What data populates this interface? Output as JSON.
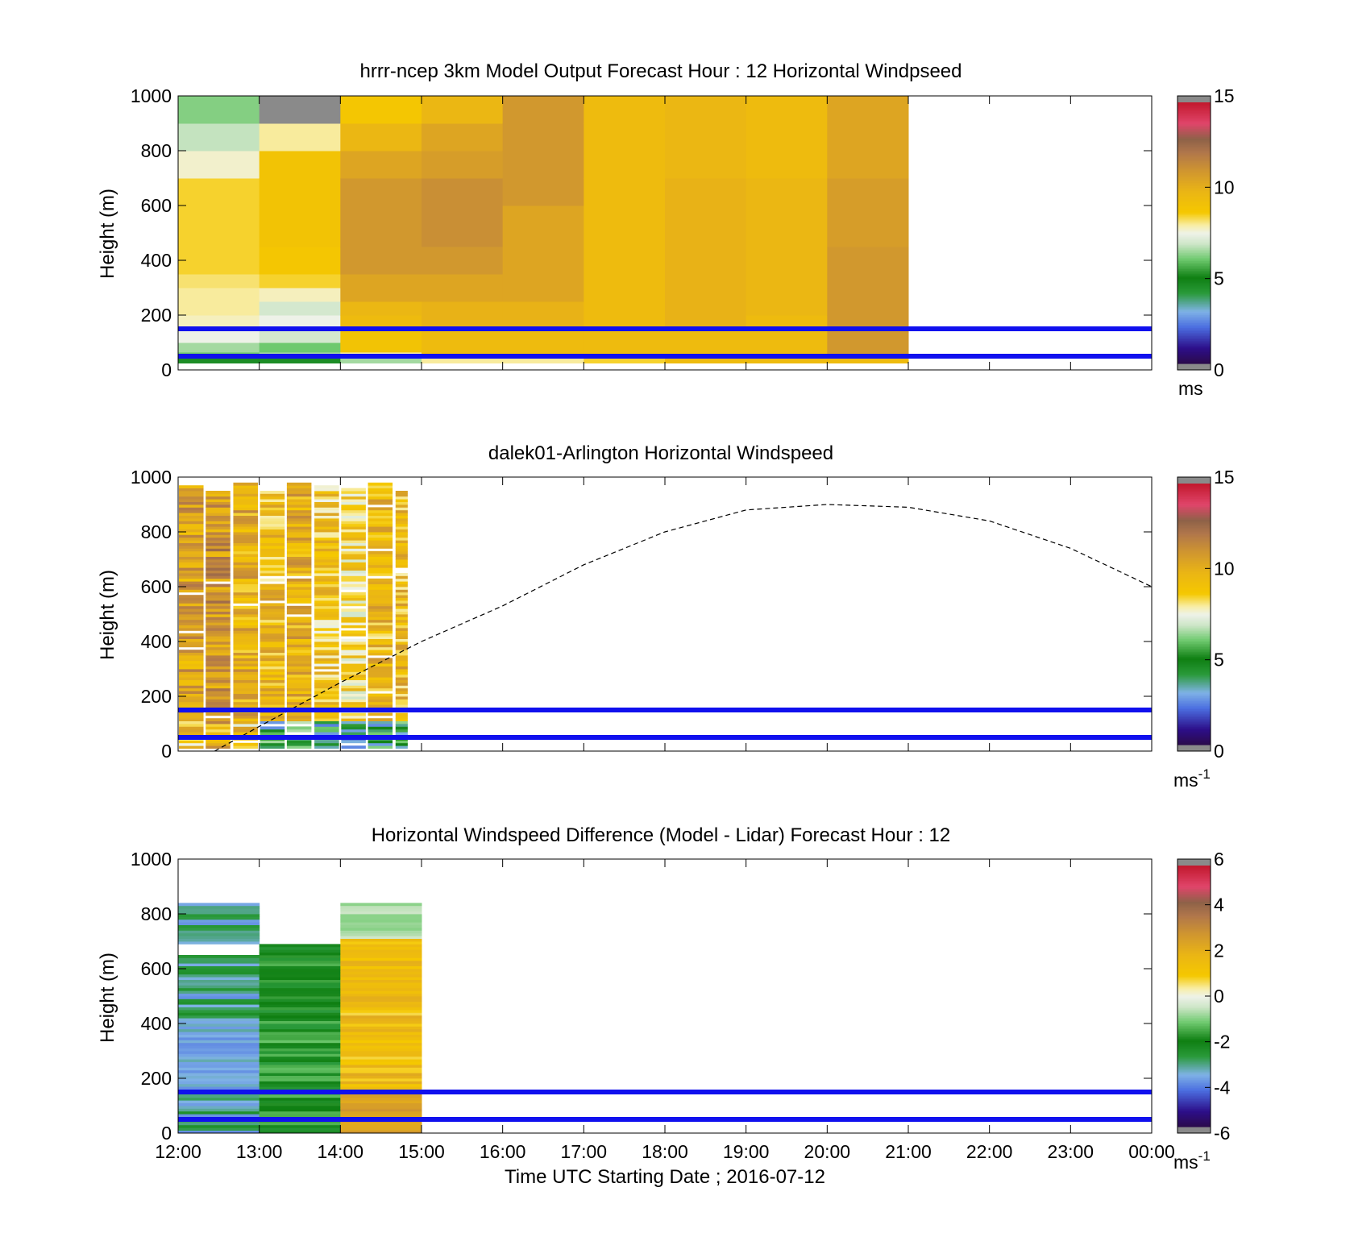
{
  "chart_data": [
    {
      "type": "heatmap",
      "title": "hrrr-ncep 3km Model Output   Forecast Hour : 12 Horizontal Windpseed",
      "ylabel": "Height (m)",
      "xlabel": "",
      "ylim": [
        0,
        1000
      ],
      "yticks": [
        "0",
        "200",
        "400",
        "600",
        "800",
        "1000"
      ],
      "xlim_hours": [
        12,
        24
      ],
      "colorbar": {
        "ticks": [
          "0",
          "5",
          "10",
          "15"
        ],
        "range": [
          0,
          15
        ],
        "unit": "ms"
      },
      "reference_lines_m": [
        150,
        50
      ],
      "reference_line_color": "#1010ee",
      "data_extent_hours": [
        12,
        21
      ],
      "columns_hours": [
        12,
        13,
        14,
        15,
        16,
        17,
        18,
        19,
        20
      ],
      "rows": [
        {
          "y0": 25,
          "y1": 45,
          "v": [
            4.5,
            4.5,
            6.5,
            8.0,
            8.0,
            8.5,
            9.5,
            9.5,
            9.5
          ]
        },
        {
          "y0": 45,
          "y1": 65,
          "v": [
            6.0,
            6.5,
            8.0,
            9.5,
            9.5,
            9.5,
            9.5,
            9.5,
            11.0
          ]
        },
        {
          "y0": 65,
          "y1": 100,
          "v": [
            6.5,
            6.0,
            9.0,
            9.5,
            9.5,
            9.5,
            9.5,
            9.5,
            11.0
          ]
        },
        {
          "y0": 100,
          "y1": 150,
          "v": [
            7.5,
            7.0,
            9.0,
            9.5,
            9.5,
            9.5,
            9.5,
            9.5,
            11.0
          ]
        },
        {
          "y0": 150,
          "y1": 200,
          "v": [
            7.8,
            7.5,
            9.5,
            10.0,
            10.0,
            9.5,
            10.0,
            9.5,
            11.0
          ]
        },
        {
          "y0": 200,
          "y1": 250,
          "v": [
            8.0,
            7.0,
            9.8,
            10.0,
            10.0,
            9.5,
            10.0,
            9.8,
            11.0
          ]
        },
        {
          "y0": 250,
          "y1": 300,
          "v": [
            8.0,
            7.8,
            10.5,
            10.5,
            10.5,
            9.5,
            10.0,
            9.8,
            11.0
          ]
        },
        {
          "y0": 300,
          "y1": 350,
          "v": [
            8.2,
            8.5,
            10.5,
            10.5,
            10.5,
            9.5,
            10.0,
            9.8,
            11.0
          ]
        },
        {
          "y0": 350,
          "y1": 450,
          "v": [
            8.5,
            8.8,
            11.0,
            11.0,
            10.5,
            9.5,
            10.0,
            9.8,
            11.0
          ]
        },
        {
          "y0": 450,
          "y1": 600,
          "v": [
            8.5,
            9.0,
            11.0,
            11.3,
            10.5,
            9.5,
            10.0,
            9.8,
            10.8
          ]
        },
        {
          "y0": 600,
          "y1": 700,
          "v": [
            8.5,
            9.0,
            11.0,
            11.3,
            11.0,
            9.5,
            10.0,
            9.8,
            10.8
          ]
        },
        {
          "y0": 700,
          "y1": 800,
          "v": [
            7.7,
            9.0,
            10.5,
            10.8,
            11.0,
            9.5,
            9.8,
            9.5,
            10.5
          ]
        },
        {
          "y0": 800,
          "y1": 900,
          "v": [
            6.8,
            8.0,
            9.8,
            10.5,
            11.0,
            9.5,
            9.8,
            9.5,
            10.5
          ]
        },
        {
          "y0": 900,
          "y1": 1000,
          "v": [
            6.2,
            15.5,
            8.8,
            9.8,
            11.0,
            9.5,
            9.8,
            9.5,
            10.5
          ]
        }
      ]
    },
    {
      "type": "heatmap",
      "title": "dalek01-Arlington  Horizontal Windspeed",
      "ylabel": "Height (m)",
      "xlabel": "",
      "ylim": [
        0,
        1000
      ],
      "yticks": [
        "0",
        "200",
        "400",
        "600",
        "800",
        "1000"
      ],
      "xlim_hours": [
        12,
        24
      ],
      "colorbar": {
        "ticks": [
          "0",
          "5",
          "10",
          "15"
        ],
        "range": [
          0,
          15
        ],
        "unit": "ms",
        "unit_exp": "-1"
      },
      "reference_lines_m": [
        150,
        50
      ],
      "reference_line_color": "#1010ee",
      "data_extent_hours": [
        12,
        14.85
      ],
      "columns_hours": [
        12.0,
        12.33,
        12.67,
        13.0,
        13.33,
        13.67,
        14.0,
        14.33,
        14.67
      ],
      "column_profiles": [
        10.5,
        11.0,
        10.0,
        9.5,
        10.0,
        9.0,
        8.5,
        9.5,
        9.5
      ],
      "sun_elevation_curve": {
        "style": "dashed",
        "points": [
          [
            12.45,
            0
          ],
          [
            13.0,
            90
          ],
          [
            14.0,
            250
          ],
          [
            15.0,
            400
          ],
          [
            16.0,
            530
          ],
          [
            17.0,
            680
          ],
          [
            18.0,
            800
          ],
          [
            19.0,
            880
          ],
          [
            20.0,
            900
          ],
          [
            21.0,
            890
          ],
          [
            22.0,
            840
          ],
          [
            23.0,
            740
          ],
          [
            24.0,
            600
          ]
        ]
      }
    },
    {
      "type": "heatmap",
      "title": "Horizontal Windspeed Difference (Model - Lidar) Forecast Hour : 12",
      "ylabel": "Height (m)",
      "xlabel": "Time UTC  Starting Date ; 2016-07-12",
      "ylim": [
        0,
        1000
      ],
      "yticks": [
        "0",
        "200",
        "400",
        "600",
        "800",
        "1000"
      ],
      "xlim_hours": [
        12,
        24
      ],
      "colorbar": {
        "ticks": [
          "-6",
          "-4",
          "-2",
          "0",
          "2",
          "4",
          "6"
        ],
        "range": [
          -6,
          6
        ],
        "unit": "ms",
        "unit_exp": "-1"
      },
      "reference_lines_m": [
        150,
        50
      ],
      "reference_line_color": "#1010ee",
      "data_extent_hours": [
        12,
        15
      ],
      "columns": [
        {
          "hour": 12,
          "top_m": 840,
          "gap": [
            650,
            690
          ],
          "mean": -3.2
        },
        {
          "hour": 13,
          "top_m": 690,
          "gap": null,
          "mean": -2.0
        },
        {
          "hour": 14,
          "top_m": 840,
          "gap": null,
          "mean": 1.5
        }
      ]
    }
  ],
  "x_tick_labels": [
    "12:00",
    "13:00",
    "14:00",
    "15:00",
    "16:00",
    "17:00",
    "18:00",
    "19:00",
    "20:00",
    "21:00",
    "22:00",
    "23:00",
    "00:00"
  ],
  "colormap": [
    [
      0.0,
      "#2b0a4a"
    ],
    [
      0.06,
      "#2d0f8a"
    ],
    [
      0.14,
      "#4b6ee0"
    ],
    [
      0.2,
      "#7fb2e6"
    ],
    [
      0.27,
      "#2a9a3a"
    ],
    [
      0.33,
      "#0f7f12"
    ],
    [
      0.4,
      "#6ec96e"
    ],
    [
      0.46,
      "#cfe6c9"
    ],
    [
      0.5,
      "#eef2e8"
    ],
    [
      0.53,
      "#f8eea8"
    ],
    [
      0.58,
      "#f5c800"
    ],
    [
      0.66,
      "#eab515"
    ],
    [
      0.74,
      "#cf9530"
    ],
    [
      0.81,
      "#b0764b"
    ],
    [
      0.86,
      "#8e6248"
    ],
    [
      0.92,
      "#e0456a"
    ],
    [
      1.0,
      "#c2192e"
    ]
  ],
  "colorbar_end_color": "#8a8a8a",
  "empty_color": "#ffffff"
}
